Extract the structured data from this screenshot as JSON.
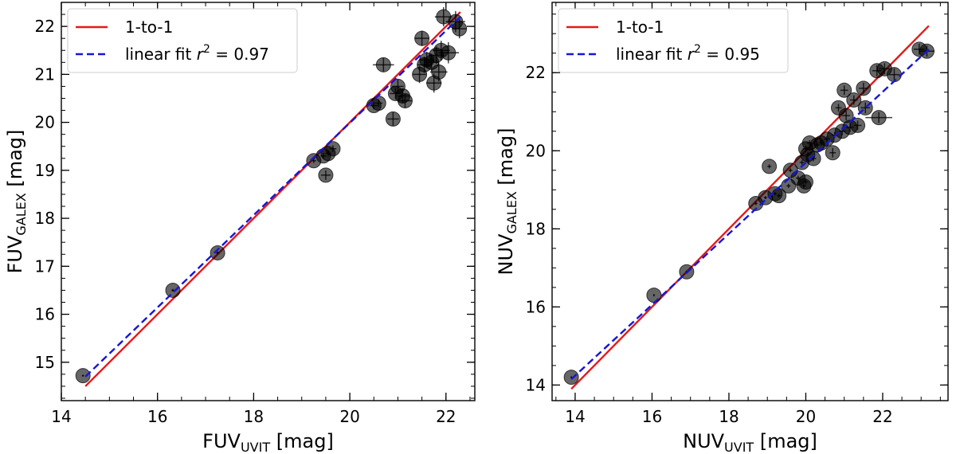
{
  "chart_data": [
    {
      "type": "scatter",
      "xlabel_main": "FUV",
      "xlabel_sub": "UVIT",
      "xlabel_unit": "[mag]",
      "ylabel_main": "FUV",
      "ylabel_sub": "GALEX",
      "ylabel_unit": "[mag]",
      "xlim": [
        14,
        22.6
      ],
      "ylim": [
        14.2,
        22.5
      ],
      "xticks": [
        14,
        16,
        18,
        20,
        22
      ],
      "yticks": [
        15,
        16,
        17,
        18,
        19,
        20,
        21,
        22
      ],
      "legend": [
        {
          "label": "1-to-1",
          "color": "#e31a1c",
          "style": "solid"
        },
        {
          "label_prefix": "linear fit ",
          "label_var": "r",
          "label_sup": "2",
          "label_suffix": " = 0.97",
          "color": "#1616d6",
          "style": "dashed"
        }
      ],
      "one_to_one": [
        [
          14.5,
          14.5
        ],
        [
          22.3,
          22.3
        ]
      ],
      "fit": [
        [
          14.5,
          14.7
        ],
        [
          22.3,
          22.2
        ]
      ],
      "points": [
        {
          "x": 14.45,
          "y": 14.72,
          "xe": 0.02,
          "ye": 0.02
        },
        {
          "x": 16.32,
          "y": 16.5,
          "xe": 0.03,
          "ye": 0.03
        },
        {
          "x": 17.25,
          "y": 17.28,
          "xe": 0.03,
          "ye": 0.03
        },
        {
          "x": 19.25,
          "y": 19.2,
          "xe": 0.05,
          "ye": 0.05
        },
        {
          "x": 19.45,
          "y": 19.3,
          "xe": 0.06,
          "ye": 0.06
        },
        {
          "x": 19.55,
          "y": 19.35,
          "xe": 0.06,
          "ye": 0.06
        },
        {
          "x": 19.65,
          "y": 19.45,
          "xe": 0.07,
          "ye": 0.07
        },
        {
          "x": 19.5,
          "y": 18.9,
          "xe": 0.1,
          "ye": 0.1
        },
        {
          "x": 20.5,
          "y": 20.35,
          "xe": 0.08,
          "ye": 0.08
        },
        {
          "x": 20.6,
          "y": 20.4,
          "xe": 0.08,
          "ye": 0.08
        },
        {
          "x": 20.7,
          "y": 21.2,
          "xe": 0.22,
          "ye": 0.14
        },
        {
          "x": 20.9,
          "y": 20.07,
          "xe": 0.12,
          "ye": 0.14
        },
        {
          "x": 20.95,
          "y": 20.6,
          "xe": 0.12,
          "ye": 0.12
        },
        {
          "x": 21.0,
          "y": 20.75,
          "xe": 0.12,
          "ye": 0.14
        },
        {
          "x": 21.1,
          "y": 20.55,
          "xe": 0.14,
          "ye": 0.15
        },
        {
          "x": 21.15,
          "y": 20.45,
          "xe": 0.14,
          "ye": 0.15
        },
        {
          "x": 21.45,
          "y": 21.0,
          "xe": 0.14,
          "ye": 0.18
        },
        {
          "x": 21.5,
          "y": 21.75,
          "xe": 0.15,
          "ye": 0.16
        },
        {
          "x": 21.55,
          "y": 21.2,
          "xe": 0.15,
          "ye": 0.17
        },
        {
          "x": 21.6,
          "y": 21.3,
          "xe": 0.15,
          "ye": 0.17
        },
        {
          "x": 21.7,
          "y": 21.25,
          "xe": 0.16,
          "ye": 0.18
        },
        {
          "x": 21.75,
          "y": 20.82,
          "xe": 0.16,
          "ye": 0.2
        },
        {
          "x": 21.8,
          "y": 21.4,
          "xe": 0.16,
          "ye": 0.18
        },
        {
          "x": 21.85,
          "y": 21.05,
          "xe": 0.18,
          "ye": 0.2
        },
        {
          "x": 21.9,
          "y": 21.5,
          "xe": 0.18,
          "ye": 0.2
        },
        {
          "x": 21.95,
          "y": 22.2,
          "xe": 0.18,
          "ye": 0.2
        },
        {
          "x": 22.05,
          "y": 21.45,
          "xe": 0.22,
          "ye": 0.22
        },
        {
          "x": 22.2,
          "y": 22.1,
          "xe": 0.2,
          "ye": 0.22
        },
        {
          "x": 22.28,
          "y": 21.95,
          "xe": 0.15,
          "ye": 0.2
        }
      ]
    },
    {
      "type": "scatter",
      "xlabel_main": "NUV",
      "xlabel_sub": "UVIT",
      "xlabel_unit": "[mag]",
      "ylabel_main": "NUV",
      "ylabel_sub": "GALEX",
      "ylabel_unit": "[mag]",
      "xlim": [
        13.4,
        23.7
      ],
      "ylim": [
        13.6,
        23.8
      ],
      "xticks": [
        14,
        16,
        18,
        20,
        22
      ],
      "yticks": [
        14,
        16,
        18,
        20,
        22
      ],
      "legend": [
        {
          "label": "1-to-1",
          "color": "#e31a1c",
          "style": "solid"
        },
        {
          "label_prefix": "linear fit ",
          "label_var": "r",
          "label_sup": "2",
          "label_suffix": " = 0.95",
          "color": "#1616d6",
          "style": "dashed"
        }
      ],
      "one_to_one": [
        [
          13.9,
          13.9
        ],
        [
          23.2,
          23.2
        ]
      ],
      "fit": [
        [
          13.9,
          14.15
        ],
        [
          23.2,
          22.6
        ]
      ],
      "points": [
        {
          "x": 13.9,
          "y": 14.2,
          "xe": 0.02,
          "ye": 0.02
        },
        {
          "x": 16.05,
          "y": 16.3,
          "xe": 0.02,
          "ye": 0.03
        },
        {
          "x": 16.9,
          "y": 16.9,
          "xe": 0.03,
          "ye": 0.03
        },
        {
          "x": 18.7,
          "y": 18.65,
          "xe": 0.04,
          "ye": 0.04
        },
        {
          "x": 18.95,
          "y": 18.8,
          "xe": 0.04,
          "ye": 0.04
        },
        {
          "x": 19.05,
          "y": 19.6,
          "xe": 0.05,
          "ye": 0.05
        },
        {
          "x": 19.2,
          "y": 18.9,
          "xe": 0.04,
          "ye": 0.04
        },
        {
          "x": 19.3,
          "y": 18.85,
          "xe": 0.05,
          "ye": 0.05
        },
        {
          "x": 19.55,
          "y": 19.1,
          "xe": 0.05,
          "ye": 0.05
        },
        {
          "x": 19.6,
          "y": 19.5,
          "xe": 0.05,
          "ye": 0.05
        },
        {
          "x": 19.8,
          "y": 19.3,
          "xe": 0.06,
          "ye": 0.06
        },
        {
          "x": 19.9,
          "y": 19.7,
          "xe": 0.06,
          "ye": 0.06
        },
        {
          "x": 19.95,
          "y": 19.1,
          "xe": 0.06,
          "ye": 0.06
        },
        {
          "x": 20.0,
          "y": 19.2,
          "xe": 0.06,
          "ye": 0.06
        },
        {
          "x": 20.05,
          "y": 19.9,
          "xe": 0.06,
          "ye": 0.06
        },
        {
          "x": 20.0,
          "y": 20.05,
          "xe": 0.08,
          "ye": 0.08
        },
        {
          "x": 20.1,
          "y": 20.2,
          "xe": 0.07,
          "ye": 0.07
        },
        {
          "x": 20.2,
          "y": 19.8,
          "xe": 0.07,
          "ye": 0.07
        },
        {
          "x": 20.3,
          "y": 20.15,
          "xe": 0.07,
          "ye": 0.07
        },
        {
          "x": 20.4,
          "y": 20.2,
          "xe": 0.07,
          "ye": 0.07
        },
        {
          "x": 20.55,
          "y": 20.3,
          "xe": 0.08,
          "ye": 0.08
        },
        {
          "x": 20.7,
          "y": 19.95,
          "xe": 0.08,
          "ye": 0.12
        },
        {
          "x": 20.75,
          "y": 20.4,
          "xe": 0.08,
          "ye": 0.08
        },
        {
          "x": 20.85,
          "y": 21.1,
          "xe": 0.08,
          "ye": 0.1
        },
        {
          "x": 20.95,
          "y": 20.5,
          "xe": 0.08,
          "ye": 0.1
        },
        {
          "x": 21.0,
          "y": 21.55,
          "xe": 0.1,
          "ye": 0.12
        },
        {
          "x": 21.05,
          "y": 20.9,
          "xe": 0.1,
          "ye": 0.12
        },
        {
          "x": 21.15,
          "y": 20.6,
          "xe": 0.1,
          "ye": 0.12
        },
        {
          "x": 21.25,
          "y": 21.3,
          "xe": 0.1,
          "ye": 0.12
        },
        {
          "x": 21.35,
          "y": 20.65,
          "xe": 0.1,
          "ye": 0.12
        },
        {
          "x": 21.5,
          "y": 21.6,
          "xe": 0.12,
          "ye": 0.14
        },
        {
          "x": 21.55,
          "y": 21.1,
          "xe": 0.12,
          "ye": 0.14
        },
        {
          "x": 21.85,
          "y": 22.05,
          "xe": 0.12,
          "ye": 0.14
        },
        {
          "x": 21.9,
          "y": 20.85,
          "xe": 0.35,
          "ye": 0.14
        },
        {
          "x": 22.05,
          "y": 22.1,
          "xe": 0.14,
          "ye": 0.14
        },
        {
          "x": 22.3,
          "y": 21.95,
          "xe": 0.14,
          "ye": 0.16
        },
        {
          "x": 22.95,
          "y": 22.6,
          "xe": 0.14,
          "ye": 0.14
        },
        {
          "x": 23.15,
          "y": 22.55,
          "xe": 0.2,
          "ye": 0.14
        }
      ]
    }
  ]
}
